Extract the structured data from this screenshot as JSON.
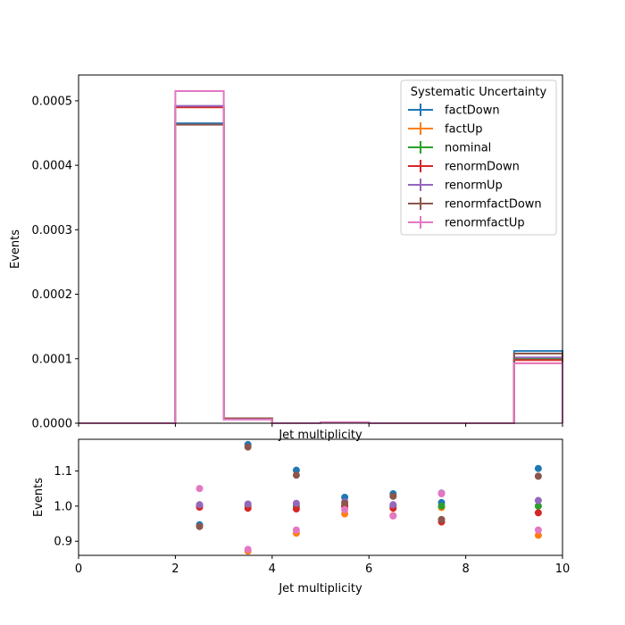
{
  "chart_data": [
    {
      "type": "step",
      "xlabel": "Jet multiplicity",
      "ylabel": "Events",
      "xlim": [
        0,
        10
      ],
      "ylim": [
        0,
        0.00054
      ],
      "xticks": [
        0,
        2,
        4,
        6,
        8,
        10
      ],
      "yticks": [
        0.0,
        0.0001,
        0.0002,
        0.0003,
        0.0004,
        0.0005
      ],
      "ytick_labels": [
        "0.0000",
        "0.0001",
        "0.0002",
        "0.0003",
        "0.0004",
        "0.0005"
      ],
      "bin_edges": [
        0,
        1,
        2,
        3,
        4,
        5,
        6,
        7,
        8,
        9,
        10
      ],
      "legend": {
        "title": "Systematic Uncertainty",
        "placement": "top-right"
      },
      "series": [
        {
          "name": "factDown",
          "color": "#1f77b4",
          "values": [
            0,
            0,
            0.000465,
            7.5e-06,
            0,
            1.2e-06,
            0,
            0,
            0,
            0.000112
          ]
        },
        {
          "name": "factUp",
          "color": "#ff7f0e",
          "values": [
            0,
            0,
            0.00049,
            6.2e-06,
            0,
            1.2e-06,
            0,
            0,
            0,
            9.3e-05
          ]
        },
        {
          "name": "nominal",
          "color": "#2ca02c",
          "values": [
            0,
            0,
            0.000491,
            6.5e-06,
            0,
            1.2e-06,
            0,
            0,
            0,
            0.0001
          ]
        },
        {
          "name": "renormDown",
          "color": "#d62728",
          "values": [
            0,
            0,
            0.00049,
            6.4e-06,
            0,
            1.2e-06,
            0,
            0,
            0,
            9.8e-05
          ]
        },
        {
          "name": "renormUp",
          "color": "#9467bd",
          "values": [
            0,
            0,
            0.000492,
            6.5e-06,
            0,
            1.2e-06,
            0,
            0,
            0,
            0.000102
          ]
        },
        {
          "name": "renormfactDown",
          "color": "#8c564b",
          "values": [
            0,
            0,
            0.000463,
            7.6e-06,
            0,
            1.2e-06,
            0,
            0,
            0,
            0.000108
          ]
        },
        {
          "name": "renormfactUp",
          "color": "#e377c2",
          "values": [
            0,
            0,
            0.000515,
            5.7e-06,
            0,
            1.2e-06,
            0,
            0,
            0,
            9.3e-05
          ]
        }
      ]
    },
    {
      "type": "scatter",
      "xlabel": "Jet multiplicity",
      "ylabel": "Events",
      "xlim": [
        0,
        10
      ],
      "ylim": [
        0.86,
        1.19
      ],
      "xticks": [
        0,
        2,
        4,
        6,
        8,
        10
      ],
      "yticks": [
        0.9,
        1.0,
        1.1
      ],
      "ytick_labels": [
        "0.9",
        "1.0",
        "1.1"
      ],
      "x": [
        2.5,
        3.5,
        4.5,
        5.5,
        6.5,
        7.5,
        9.5
      ],
      "series": [
        {
          "name": "factDown",
          "color": "#1f77b4",
          "values": [
            0.947,
            1.175,
            1.102,
            1.025,
            1.035,
            1.01,
            1.107
          ]
        },
        {
          "name": "factUp",
          "color": "#ff7f0e",
          "values": [
            0.998,
            0.872,
            0.923,
            0.978,
            0.973,
            0.996,
            0.917
          ]
        },
        {
          "name": "nominal",
          "color": "#2ca02c",
          "values": [
            1.0,
            1.0,
            1.0,
            1.0,
            1.0,
            1.0,
            1.0
          ]
        },
        {
          "name": "renormDown",
          "color": "#d62728",
          "values": [
            0.997,
            0.994,
            0.992,
            1.0,
            0.994,
            0.955,
            0.981
          ]
        },
        {
          "name": "renormUp",
          "color": "#9467bd",
          "values": [
            1.004,
            1.006,
            1.008,
            1.012,
            1.004,
            1.037,
            1.016
          ]
        },
        {
          "name": "renormfactDown",
          "color": "#8c564b",
          "values": [
            0.942,
            1.168,
            1.088,
            1.008,
            1.028,
            0.962,
            1.085
          ]
        },
        {
          "name": "renormfactUp",
          "color": "#e377c2",
          "values": [
            1.05,
            0.877,
            0.932,
            0.99,
            0.972,
            1.035,
            0.932
          ]
        }
      ]
    }
  ]
}
